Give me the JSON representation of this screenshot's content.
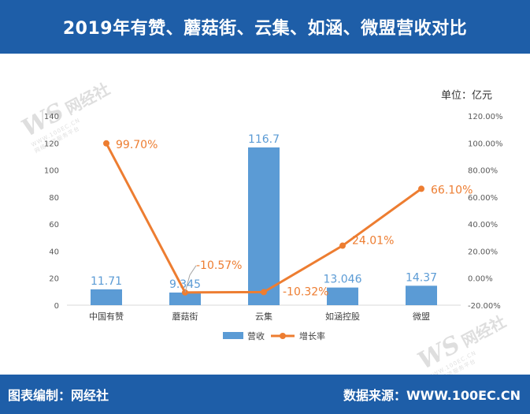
{
  "header": {
    "title": "2019年有赞、蘑菇街、云集、如涵、微盟营收对比"
  },
  "unit_label": "单位：亿元",
  "watermark": {
    "logo": "WS",
    "name": "网经社",
    "site": "WWW.100EC.CN",
    "tagline": "网络经济服务平台"
  },
  "footer": {
    "left": "图表编制：网经社",
    "right": "数据来源：WWW.100EC.CN"
  },
  "colors": {
    "bar": "#5b9bd5",
    "line": "#ed7d31",
    "header_bg": "#1e5ea8",
    "bar_label": "#5b9bd5",
    "line_label": "#ed7d31"
  },
  "chart_data": {
    "type": "bar",
    "categories": [
      "中国有赞",
      "蘑菇街",
      "云集",
      "如涵控股",
      "微盟"
    ],
    "series": [
      {
        "name": "营收",
        "type": "bar",
        "axis": "left",
        "values": [
          11.71,
          9.345,
          116.7,
          13.046,
          14.37
        ],
        "labels": [
          "11.71",
          "9.345",
          "116.7",
          "13.046",
          "14.37"
        ]
      },
      {
        "name": "增长率",
        "type": "line",
        "axis": "right",
        "values": [
          99.7,
          -10.57,
          -10.32,
          24.01,
          66.1
        ],
        "labels": [
          "99.70%",
          "-10.57%",
          "-10.32%",
          "24.01%",
          "66.10%"
        ]
      }
    ],
    "y_left": {
      "min": 0,
      "max": 140,
      "ticks": [
        "0",
        "20",
        "40",
        "60",
        "80",
        "100",
        "120",
        "140"
      ]
    },
    "y_right": {
      "min": -20,
      "max": 120,
      "ticks": [
        "-20.00%",
        "0.00%",
        "20.00%",
        "40.00%",
        "60.00%",
        "80.00%",
        "100.00%",
        "120.00%"
      ]
    },
    "grid": false,
    "legend": {
      "position": "bottom",
      "items": [
        "营收",
        "增长率"
      ]
    }
  }
}
